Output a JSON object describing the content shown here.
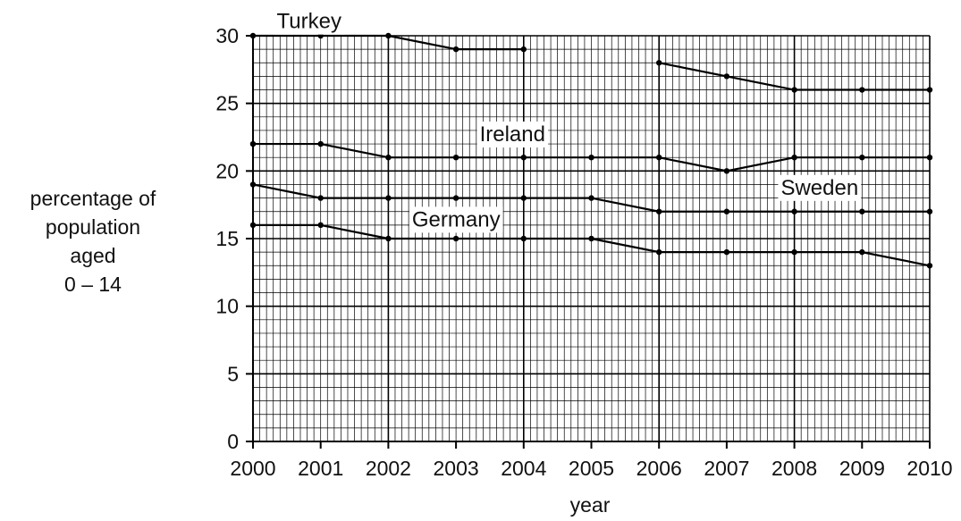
{
  "chart_data": {
    "type": "line",
    "x": [
      2000,
      2001,
      2002,
      2003,
      2004,
      2005,
      2006,
      2007,
      2008,
      2009,
      2010
    ],
    "xlabel": "year",
    "ylabel": [
      "percentage of",
      "population",
      "aged",
      "0 – 14"
    ],
    "ylim": [
      0,
      30
    ],
    "xlim": [
      2000,
      2010
    ],
    "yticks": [
      "0",
      "5",
      "10",
      "15",
      "20",
      "25",
      "30"
    ],
    "xticks": [
      "2000",
      "2001",
      "2002",
      "2003",
      "2004",
      "2005",
      "2006",
      "2007",
      "2008",
      "2009",
      "2010"
    ],
    "grid": true,
    "series": [
      {
        "name": "Turkey",
        "values": [
          30,
          30,
          30,
          29,
          29,
          null,
          28,
          27,
          26,
          26,
          26
        ]
      },
      {
        "name": "Ireland",
        "values": [
          22,
          22,
          21,
          21,
          21,
          21,
          21,
          20,
          21,
          21,
          21
        ]
      },
      {
        "name": "Sweden",
        "values": [
          19,
          18,
          18,
          18,
          18,
          18,
          17,
          17,
          17,
          17,
          17
        ]
      },
      {
        "name": "Germany",
        "values": [
          16,
          16,
          15,
          15,
          15,
          15,
          14,
          14,
          14,
          14,
          13
        ]
      }
    ]
  }
}
